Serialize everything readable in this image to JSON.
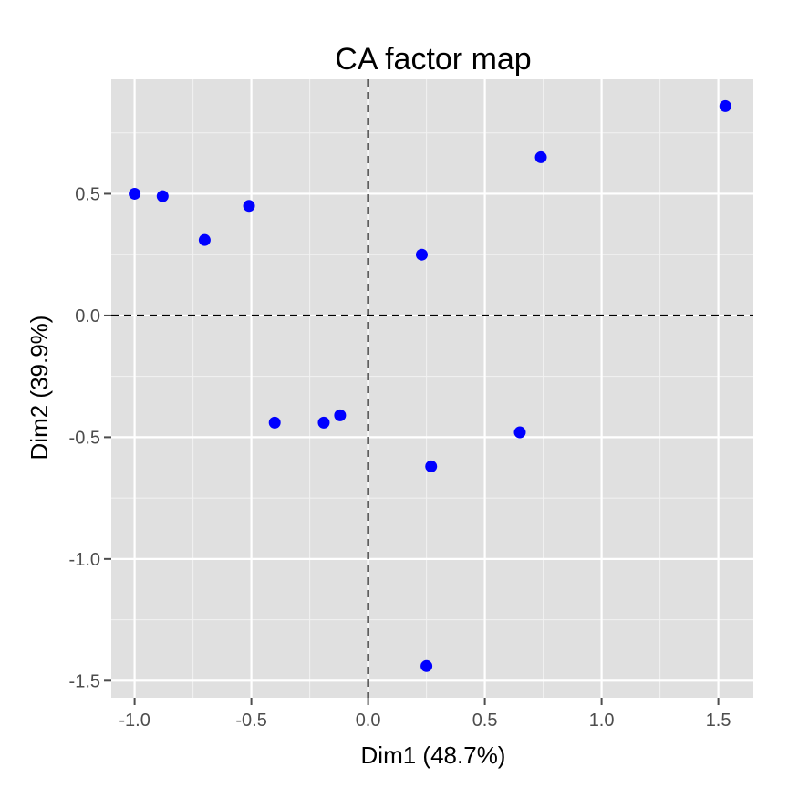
{
  "chart_data": {
    "type": "scatter",
    "title": "CA factor map",
    "xlabel": "Dim1 (48.7%)",
    "ylabel": "Dim2 (39.9%)",
    "xlim": [
      -1.1,
      1.65
    ],
    "ylim": [
      -1.57,
      0.97
    ],
    "x_ticks": [
      -1.0,
      -0.5,
      0.0,
      0.5,
      1.0,
      1.5
    ],
    "x_tick_labels": [
      "-1.0",
      "-0.5",
      "0.0",
      "0.5",
      "1.0",
      "1.5"
    ],
    "y_ticks": [
      0.5,
      0.0,
      -0.5,
      -1.0,
      -1.5
    ],
    "y_tick_labels": [
      "0.5",
      "0.0",
      "-0.5",
      "-1.0",
      "-1.5"
    ],
    "grid": true,
    "reference_lines": {
      "x": 0,
      "y": 0,
      "style": "dashed"
    },
    "point_color": "#0000ff",
    "panel_background": "#e0e0e0",
    "points": [
      {
        "x": -1.0,
        "y": 0.5
      },
      {
        "x": -0.88,
        "y": 0.49
      },
      {
        "x": -0.7,
        "y": 0.31
      },
      {
        "x": -0.51,
        "y": 0.45
      },
      {
        "x": 0.23,
        "y": 0.25
      },
      {
        "x": 0.74,
        "y": 0.65
      },
      {
        "x": 1.53,
        "y": 0.86
      },
      {
        "x": -0.4,
        "y": -0.44
      },
      {
        "x": -0.19,
        "y": -0.44
      },
      {
        "x": -0.12,
        "y": -0.41
      },
      {
        "x": 0.27,
        "y": -0.62
      },
      {
        "x": 0.65,
        "y": -0.48
      },
      {
        "x": 0.25,
        "y": -1.44
      }
    ]
  }
}
